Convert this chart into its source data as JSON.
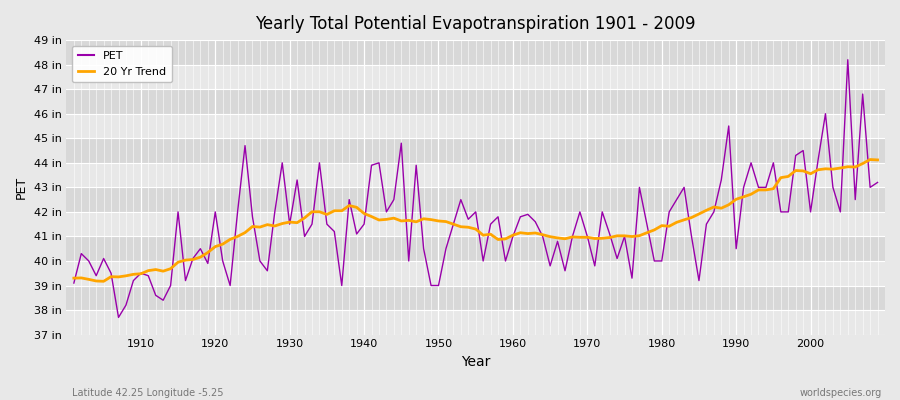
{
  "title": "Yearly Total Potential Evapotranspiration 1901 - 2009",
  "xlabel": "Year",
  "ylabel": "PET",
  "subtitle_left": "Latitude 42.25 Longitude -5.25",
  "subtitle_right": "worldspecies.org",
  "bg_color": "#e8e8e8",
  "plot_bg_color": "#e0e0e0",
  "stripe_light": "#e8e8e8",
  "stripe_dark": "#d8d8d8",
  "pet_color": "#9900aa",
  "trend_color": "#ffa500",
  "ylim": [
    37,
    49
  ],
  "years": [
    1901,
    1902,
    1903,
    1904,
    1905,
    1906,
    1907,
    1908,
    1909,
    1910,
    1911,
    1912,
    1913,
    1914,
    1915,
    1916,
    1917,
    1918,
    1919,
    1920,
    1921,
    1922,
    1923,
    1924,
    1925,
    1926,
    1927,
    1928,
    1929,
    1930,
    1931,
    1932,
    1933,
    1934,
    1935,
    1936,
    1937,
    1938,
    1939,
    1940,
    1941,
    1942,
    1943,
    1944,
    1945,
    1946,
    1947,
    1948,
    1949,
    1950,
    1951,
    1952,
    1953,
    1954,
    1955,
    1956,
    1957,
    1958,
    1959,
    1960,
    1961,
    1962,
    1963,
    1964,
    1965,
    1966,
    1967,
    1968,
    1969,
    1970,
    1971,
    1972,
    1973,
    1974,
    1975,
    1976,
    1977,
    1978,
    1979,
    1980,
    1981,
    1982,
    1983,
    1984,
    1985,
    1986,
    1987,
    1988,
    1989,
    1990,
    1991,
    1992,
    1993,
    1994,
    1995,
    1996,
    1997,
    1998,
    1999,
    2000,
    2001,
    2002,
    2003,
    2004,
    2005,
    2006,
    2007,
    2008,
    2009
  ],
  "pet_values": [
    39.1,
    40.3,
    40.0,
    39.4,
    40.1,
    39.5,
    37.7,
    38.2,
    39.2,
    39.5,
    39.4,
    38.6,
    38.4,
    39.0,
    42.0,
    39.2,
    40.1,
    40.5,
    39.9,
    42.0,
    40.0,
    39.0,
    42.0,
    44.7,
    41.8,
    40.0,
    39.6,
    42.0,
    44.0,
    41.5,
    43.3,
    41.0,
    41.5,
    44.0,
    41.5,
    41.2,
    39.0,
    42.5,
    41.1,
    41.5,
    43.9,
    44.0,
    42.0,
    42.5,
    44.8,
    40.0,
    43.9,
    40.5,
    39.0,
    39.0,
    40.5,
    41.5,
    42.5,
    41.7,
    42.0,
    40.0,
    41.5,
    41.8,
    40.0,
    41.0,
    41.8,
    41.9,
    41.6,
    41.0,
    39.8,
    40.8,
    39.6,
    41.0,
    42.0,
    41.0,
    39.8,
    42.0,
    41.1,
    40.1,
    41.0,
    39.3,
    43.0,
    41.5,
    40.0,
    40.0,
    42.0,
    42.5,
    43.0,
    41.0,
    39.2,
    41.5,
    42.0,
    43.3,
    45.5,
    40.5,
    43.0,
    44.0,
    43.0,
    43.0,
    44.0,
    42.0,
    42.0,
    44.3,
    44.5,
    42.0,
    44.1,
    46.0,
    43.0,
    42.0,
    48.2,
    42.5,
    46.8,
    43.0,
    43.2
  ]
}
